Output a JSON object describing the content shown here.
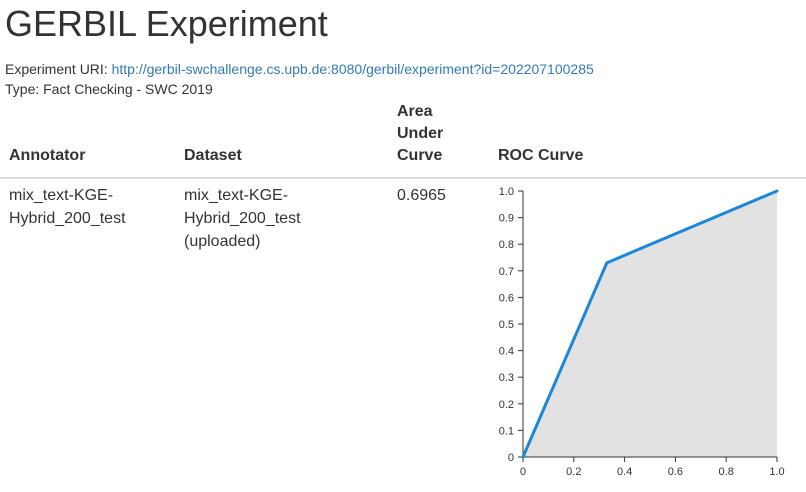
{
  "page": {
    "title": "GERBIL Experiment",
    "uri_label": "Experiment URI:",
    "uri": "http://gerbil-swchallenge.cs.upb.de:8080/gerbil/experiment?id=202207100285",
    "type_line": "Type: Fact Checking - SWC 2019"
  },
  "table": {
    "headers": {
      "annotator": "Annotator",
      "dataset": "Dataset",
      "auc_line1": "Area Under",
      "auc_line2": "Curve",
      "roc": "ROC Curve"
    },
    "rows": [
      {
        "annotator_line1": "mix_text-KGE-",
        "annotator_line2": "Hybrid_200_test",
        "dataset_line1": "mix_text-KGE-",
        "dataset_line2": "Hybrid_200_test (uploaded)",
        "auc": "0.6965"
      }
    ]
  },
  "chart_data": {
    "type": "area",
    "x": [
      0,
      0.33,
      1.0
    ],
    "y": [
      0,
      0.73,
      1.0
    ],
    "xlim": [
      0,
      1
    ],
    "ylim": [
      0,
      1
    ],
    "xticks": [
      "0",
      "0.2",
      "0.4",
      "0.6",
      "0.8",
      "1.0"
    ],
    "yticks": [
      "0",
      "0.1",
      "0.2",
      "0.3",
      "0.4",
      "0.5",
      "0.6",
      "0.7",
      "0.8",
      "0.9",
      "1.0"
    ],
    "line_color": "#1a87d8",
    "fill_color": "#e2e2e2",
    "grid": false
  }
}
